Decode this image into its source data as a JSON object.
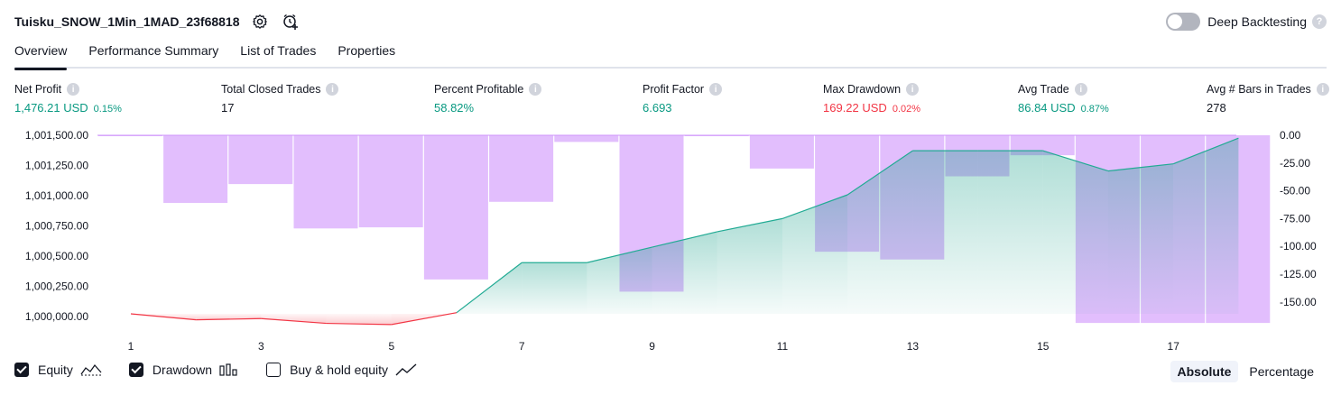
{
  "header": {
    "title": "Tuisku_SNOW_1Min_1MAD_23f68818",
    "deep_backtesting_label": "Deep Backtesting",
    "deep_backtesting_enabled": false
  },
  "tabs": [
    {
      "label": "Overview",
      "active": true
    },
    {
      "label": "Performance Summary",
      "active": false
    },
    {
      "label": "List of Trades",
      "active": false
    },
    {
      "label": "Properties",
      "active": false
    }
  ],
  "stats": [
    {
      "label": "Net Profit",
      "value": "1,476.21 USD",
      "pct": "0.15%",
      "tone": "green"
    },
    {
      "label": "Total Closed Trades",
      "value": "17",
      "pct": "",
      "tone": "neutral"
    },
    {
      "label": "Percent Profitable",
      "value": "58.82%",
      "pct": "",
      "tone": "green"
    },
    {
      "label": "Profit Factor",
      "value": "6.693",
      "pct": "",
      "tone": "green"
    },
    {
      "label": "Max Drawdown",
      "value": "169.22 USD",
      "pct": "0.02%",
      "tone": "red"
    },
    {
      "label": "Avg Trade",
      "value": "86.84 USD",
      "pct": "0.87%",
      "tone": "green"
    },
    {
      "label": "Avg # Bars in Trades",
      "value": "278",
      "pct": "",
      "tone": "neutral"
    }
  ],
  "chart_data": {
    "type": "area",
    "x_ticks": [
      "1",
      "3",
      "5",
      "7",
      "9",
      "11",
      "13",
      "15",
      "17"
    ],
    "y_left_ticks": [
      "1,001,500.00",
      "1,001,250.00",
      "1,001,000.00",
      "1,000,750.00",
      "1,000,500.00",
      "1,000,250.00",
      "1,000,000.00"
    ],
    "y_right_ticks": [
      "0.00",
      "-25.00",
      "-50.00",
      "-75.00",
      "-100.00",
      "-125.00",
      "-150.00"
    ],
    "ylim_left": [
      999920,
      1001530
    ],
    "ylim_right": [
      -173,
      0
    ],
    "series": [
      {
        "name": "Equity",
        "x": [
          1,
          2,
          3,
          4,
          5,
          6,
          7,
          8,
          9,
          10,
          11,
          12,
          13,
          14,
          15,
          16,
          17,
          18
        ],
        "values": [
          1000000,
          999950,
          999960,
          999920,
          999910,
          1000010,
          1000430,
          1000430,
          1000560,
          1000690,
          1000800,
          1001000,
          1001370,
          1001370,
          1001370,
          1001200,
          1001260,
          1001476.21
        ]
      },
      {
        "name": "Drawdown",
        "x": [
          0.5,
          1.5,
          2.5,
          3.5,
          4.5,
          5.5,
          6.5,
          7.5,
          8.5,
          9.5,
          10.5,
          11.5,
          12.5,
          13.5,
          14.5,
          15.5,
          16.5,
          17.5
        ],
        "values": [
          -0.5,
          -61,
          -44,
          -84,
          -83,
          -130,
          -60,
          -6,
          -141,
          -0.5,
          -30,
          -105,
          -112,
          -37,
          -18,
          -169.22,
          -169.22,
          -169.22
        ]
      }
    ]
  },
  "legend": {
    "equity": {
      "label": "Equity",
      "checked": true
    },
    "drawdown": {
      "label": "Drawdown",
      "checked": true
    },
    "buy_hold": {
      "label": "Buy & hold equity",
      "checked": false
    }
  },
  "mode": {
    "absolute": "Absolute",
    "percentage": "Percentage",
    "selected": "Absolute"
  },
  "colors": {
    "profit": "#089981",
    "loss": "#f23645",
    "drawdown_bar": "#ce93fb",
    "equity_line_up": "#22ab94",
    "equity_line_down": "#f23645"
  },
  "icons": {
    "settings": "gear-icon",
    "alert": "alarm-plus-icon",
    "help": "question-icon",
    "info": "info-icon"
  }
}
